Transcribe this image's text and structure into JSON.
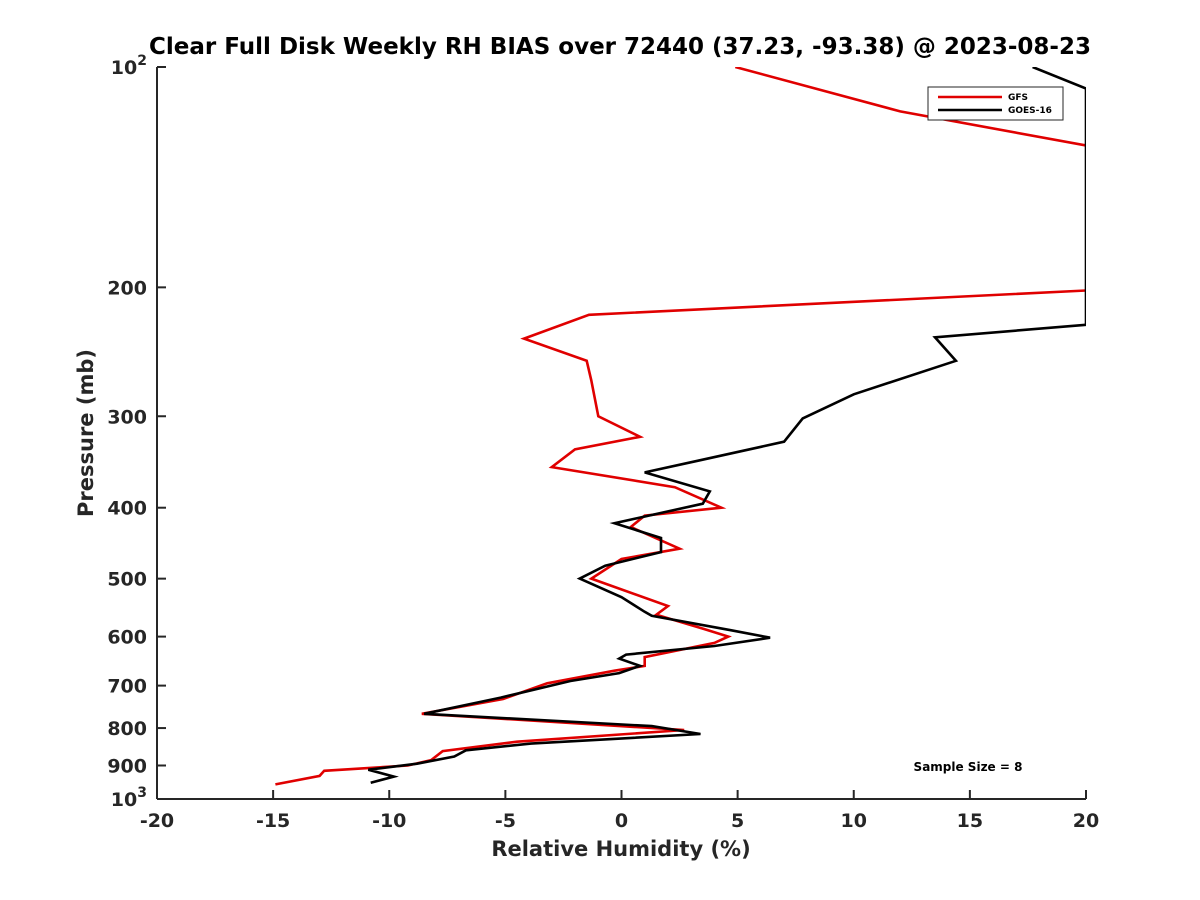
{
  "chart_data": {
    "type": "line",
    "title": "Clear Full Disk Weekly RH BIAS over 72440 (37.23, -93.38) @ 2023-08-23",
    "xlabel": "Relative Humidity (%)",
    "ylabel": "Pressure (mb)",
    "xlim": [
      -20,
      20
    ],
    "ylim": [
      100,
      1000
    ],
    "y_scale": "log",
    "y_reversed": true,
    "grid": false,
    "legend_position": "top-right",
    "x_ticks": [
      -20,
      -15,
      -10,
      -5,
      0,
      5,
      10,
      15,
      20
    ],
    "x_tick_labels": [
      "-20",
      "-15",
      "-10",
      "-5",
      "0",
      "5",
      "10",
      "15",
      "20"
    ],
    "y_ticks": [
      100,
      200,
      300,
      400,
      500,
      600,
      700,
      800,
      900,
      1000
    ],
    "y_tick_labels": [
      {
        "base": "10",
        "exp": "2"
      },
      {
        "base": "200",
        "exp": ""
      },
      {
        "base": "300",
        "exp": ""
      },
      {
        "base": "400",
        "exp": ""
      },
      {
        "base": "500",
        "exp": ""
      },
      {
        "base": "600",
        "exp": ""
      },
      {
        "base": "700",
        "exp": ""
      },
      {
        "base": "800",
        "exp": ""
      },
      {
        "base": "900",
        "exp": ""
      },
      {
        "base": "10",
        "exp": "3"
      }
    ],
    "annotation": "Sample Size = 8",
    "series": [
      {
        "name": "GFS",
        "color": "#e00000",
        "points": [
          [
            4.9,
            100
          ],
          [
            12.0,
            115
          ],
          [
            20.0,
            128
          ],
          [
            21.0,
            130
          ],
          [
            20.0,
            202
          ],
          [
            -1.4,
            218
          ],
          [
            -4.2,
            235
          ],
          [
            -1.5,
            252
          ],
          [
            -1.3,
            268
          ],
          [
            -1.0,
            300
          ],
          [
            0.8,
            320
          ],
          [
            -2.0,
            333
          ],
          [
            -3.0,
            352
          ],
          [
            2.3,
            375
          ],
          [
            4.3,
            400
          ],
          [
            1.0,
            410
          ],
          [
            0.4,
            425
          ],
          [
            2.5,
            455
          ],
          [
            0.0,
            470
          ],
          [
            -1.3,
            500
          ],
          [
            2.0,
            545
          ],
          [
            1.5,
            560
          ],
          [
            3.5,
            585
          ],
          [
            4.6,
            600
          ],
          [
            4.0,
            612
          ],
          [
            1.0,
            640
          ],
          [
            1.0,
            658
          ],
          [
            -0.3,
            668
          ],
          [
            -3.2,
            695
          ],
          [
            -5.1,
            730
          ],
          [
            -8.6,
            765
          ],
          [
            2.7,
            805
          ],
          [
            -4.5,
            835
          ],
          [
            -7.7,
            860
          ],
          [
            -8.2,
            885
          ],
          [
            -9.2,
            900
          ],
          [
            -12.8,
            915
          ],
          [
            -13.0,
            930
          ],
          [
            -14.9,
            955
          ]
        ]
      },
      {
        "name": "GOES-16",
        "color": "#000000",
        "points": [
          [
            17.7,
            100
          ],
          [
            20.0,
            107
          ],
          [
            20.0,
            225
          ],
          [
            13.5,
            234
          ],
          [
            14.4,
            252
          ],
          [
            10.0,
            280
          ],
          [
            7.8,
            302
          ],
          [
            7.0,
            325
          ],
          [
            3.3,
            345
          ],
          [
            1.0,
            358
          ],
          [
            3.8,
            380
          ],
          [
            3.5,
            395
          ],
          [
            -0.3,
            420
          ],
          [
            1.7,
            440
          ],
          [
            1.7,
            460
          ],
          [
            -0.7,
            480
          ],
          [
            -1.8,
            500
          ],
          [
            0.0,
            530
          ],
          [
            1.0,
            555
          ],
          [
            1.3,
            562
          ],
          [
            4.7,
            588
          ],
          [
            6.4,
            602
          ],
          [
            4.0,
            618
          ],
          [
            0.2,
            635
          ],
          [
            -0.1,
            643
          ],
          [
            0.8,
            658
          ],
          [
            -0.1,
            673
          ],
          [
            -2.2,
            690
          ],
          [
            -5.2,
            727
          ],
          [
            -8.5,
            765
          ],
          [
            1.3,
            795
          ],
          [
            3.4,
            815
          ],
          [
            -3.9,
            840
          ],
          [
            -6.7,
            858
          ],
          [
            -7.2,
            875
          ],
          [
            -8.8,
            895
          ],
          [
            -10.9,
            912
          ],
          [
            -9.8,
            932
          ],
          [
            -10.8,
            950
          ]
        ]
      }
    ]
  }
}
